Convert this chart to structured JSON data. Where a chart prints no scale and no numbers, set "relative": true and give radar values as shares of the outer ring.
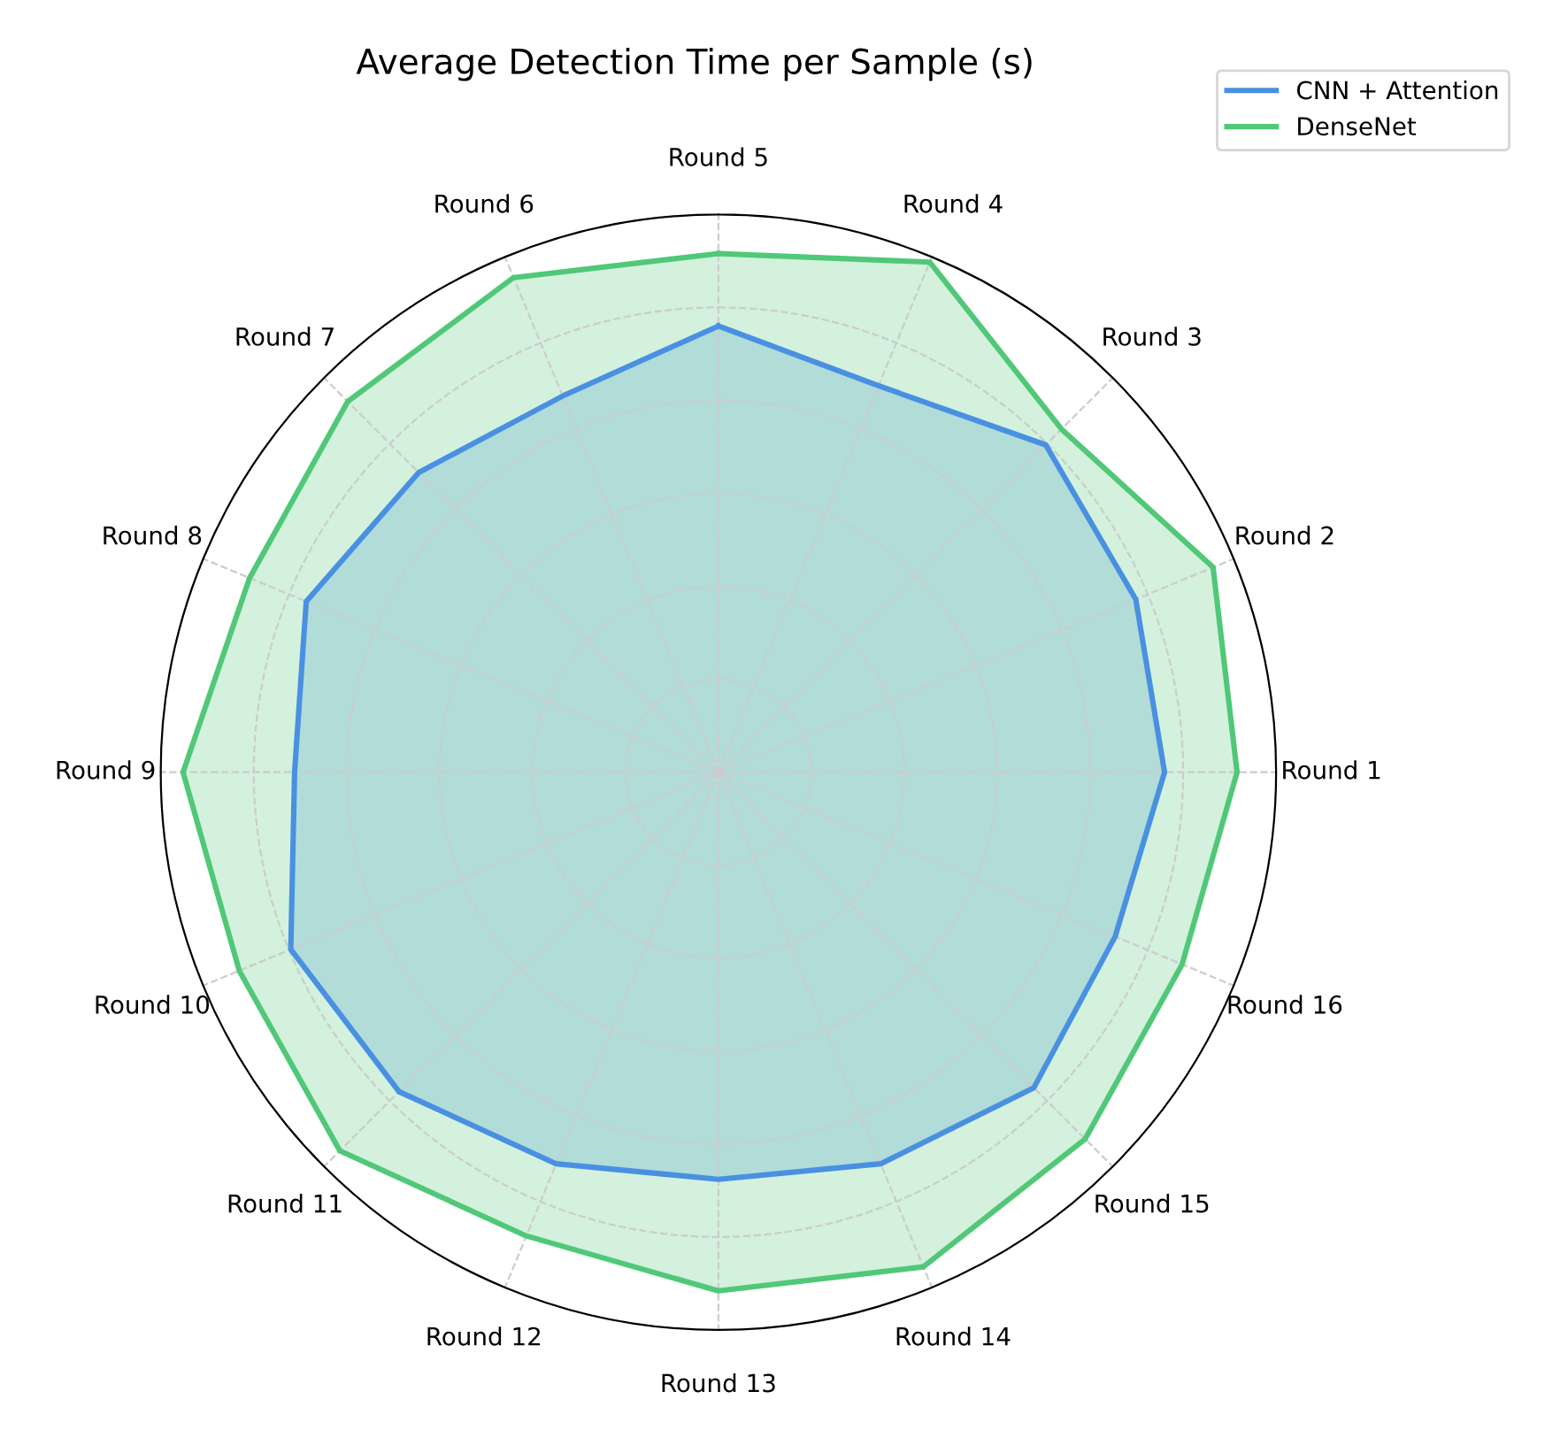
{
  "chart_data": {
    "type": "radar",
    "title": "Average Detection Time per Sample (s)",
    "relative": true,
    "grid": true,
    "legend": "top right",
    "line_style": "solid",
    "marker": "none",
    "categories": [
      "Round 5",
      "Round 4",
      "Round 3",
      "Round 2",
      "Round 1",
      "Round 16",
      "Round 15",
      "Round 14",
      "Round 13",
      "Round 12",
      "Round 11",
      "Round 10",
      "Round 9",
      "Round 8",
      "Round 7",
      "Round 6"
    ],
    "series": [
      {
        "name": "CNN + Attention",
        "color": "#4a90e2",
        "values": [
          0.8,
          0.75,
          0.83,
          0.81,
          0.8,
          0.77,
          0.8,
          0.76,
          0.73,
          0.76,
          0.81,
          0.83,
          0.76,
          0.8,
          0.76,
          0.73
        ]
      },
      {
        "name": "DenseNet",
        "color": "#50c878",
        "values": [
          0.93,
          0.99,
          0.87,
          0.96,
          0.93,
          0.9,
          0.93,
          0.96,
          0.93,
          0.9,
          0.96,
          0.93,
          0.96,
          0.91,
          0.94,
          0.96
        ]
      }
    ]
  }
}
